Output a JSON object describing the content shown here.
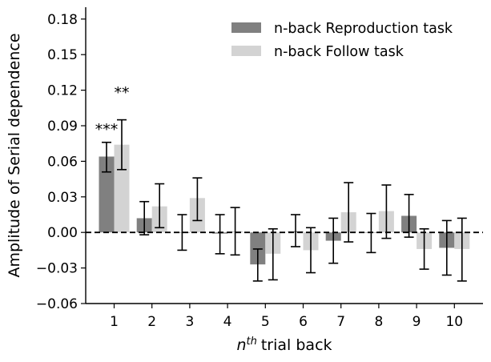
{
  "chart_data": {
    "type": "bar",
    "xlabel": "trial back",
    "xlabel_prefix": "n",
    "xlabel_sup": "th",
    "ylabel": "Amplitude of Serial dependence",
    "ylim": [
      -0.06,
      0.19
    ],
    "yticks": [
      -0.06,
      -0.03,
      0.0,
      0.03,
      0.06,
      0.09,
      0.12,
      0.15,
      0.18
    ],
    "ytick_labels": [
      "−0.06",
      "−0.03",
      "0.00",
      "0.03",
      "0.06",
      "0.09",
      "0.12",
      "0.15",
      "0.18"
    ],
    "categories": [
      "1",
      "2",
      "3",
      "4",
      "5",
      "6",
      "7",
      "8",
      "9",
      "10"
    ],
    "reference_line": 0,
    "legend_position": "top-right",
    "series": [
      {
        "name": "n-back Reproduction task",
        "color": "#808080",
        "values": [
          0.064,
          0.012,
          0.0,
          -0.001,
          -0.027,
          0.001,
          -0.007,
          0.0,
          0.014,
          -0.013
        ],
        "err_low": [
          0.051,
          -0.002,
          -0.015,
          -0.018,
          -0.041,
          -0.012,
          -0.026,
          -0.017,
          -0.004,
          -0.036
        ],
        "err_high": [
          0.076,
          0.026,
          0.015,
          0.015,
          -0.014,
          0.015,
          0.012,
          0.016,
          0.032,
          0.01
        ]
      },
      {
        "name": "n-back Follow task",
        "color": "#d3d3d3",
        "values": [
          0.074,
          0.022,
          0.029,
          0.001,
          -0.018,
          -0.015,
          0.017,
          0.018,
          -0.014,
          -0.014
        ],
        "err_low": [
          0.053,
          0.004,
          0.01,
          -0.019,
          -0.04,
          -0.034,
          -0.008,
          -0.005,
          -0.031,
          -0.041
        ],
        "err_high": [
          0.095,
          0.041,
          0.046,
          0.021,
          0.003,
          0.004,
          0.042,
          0.04,
          0.003,
          0.012
        ]
      }
    ],
    "annotations": [
      {
        "text": "***",
        "category": "1",
        "series": 0,
        "y": 0.088
      },
      {
        "text": "**",
        "category": "1",
        "series": 1,
        "y": 0.119
      }
    ]
  }
}
